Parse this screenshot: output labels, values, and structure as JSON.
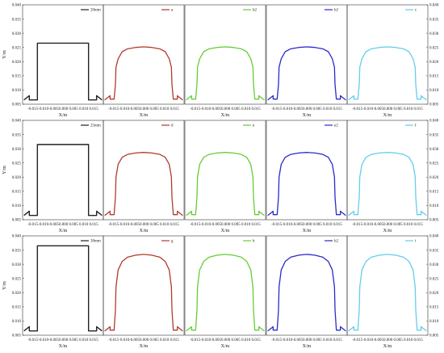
{
  "figure": {
    "rows": [
      {
        "name": "row-20mm",
        "panels": [
          {
            "label": "20mm",
            "color": "#222222",
            "shape": "rect"
          },
          {
            "label": "a",
            "color": "#b03a2e",
            "shape": "bump"
          },
          {
            "label": "b2",
            "color": "#66cc33",
            "shape": "bump"
          },
          {
            "label": "b2",
            "color": "#2a2acc",
            "shape": "bump"
          },
          {
            "label": "c",
            "color": "#66ccee",
            "shape": "bump"
          }
        ]
      },
      {
        "name": "row-25mm",
        "panels": [
          {
            "label": "25mm",
            "color": "#222222",
            "shape": "rect"
          },
          {
            "label": "d",
            "color": "#b03a2e",
            "shape": "bump"
          },
          {
            "label": "e",
            "color": "#66cc33",
            "shape": "bump"
          },
          {
            "label": "e2",
            "color": "#2a2acc",
            "shape": "bump"
          },
          {
            "label": "f",
            "color": "#66ccee",
            "shape": "bump"
          }
        ]
      },
      {
        "name": "row-30mm",
        "panels": [
          {
            "label": "30mm",
            "color": "#222222",
            "shape": "rect"
          },
          {
            "label": "g",
            "color": "#b03a2e",
            "shape": "bump"
          },
          {
            "label": "h",
            "color": "#66cc33",
            "shape": "bump"
          },
          {
            "label": "h2",
            "color": "#2a2acc",
            "shape": "bump"
          },
          {
            "label": "i",
            "color": "#66ccee",
            "shape": "bump"
          }
        ]
      }
    ]
  },
  "chart_data": {
    "type": "line",
    "title": "",
    "xlabel": "X/m",
    "ylabel": "Y/m",
    "xlim": [
      -0.015,
      0.015
    ],
    "ylim": [
      0.005,
      0.04
    ],
    "y_ticks": [
      "0.040",
      "0.035",
      "0.030",
      "0.025",
      "0.020",
      "0.015",
      "0.010",
      "0.005"
    ],
    "x_tick_labels": [
      "-0.015-0.010-0.0050.000 0.005 0.010 0.015",
      "-0.015-0.010-0.0050.000 0.005 0.010 0.015",
      "-0.015-0.010-0.0050.000 0.005 0.010 0.015",
      "-0.015-0.010-0.0050.000 0.005 0.010 0.015",
      "-0.015-0.010-0.0050.000 0.005 0.010 0.015"
    ],
    "profiles": {
      "rect": {
        "20mm": {
          "x": [
            -0.0145,
            -0.0125,
            -0.0125,
            -0.0095,
            -0.0095,
            0.0095,
            0.0095,
            0.0125,
            0.0125,
            0.0145
          ],
          "y": [
            0.0065,
            0.008,
            0.0065,
            0.0065,
            0.0265,
            0.0265,
            0.0065,
            0.0065,
            0.008,
            0.0065
          ]
        },
        "25mm": {
          "x": [
            -0.0145,
            -0.0125,
            -0.0125,
            -0.0095,
            -0.0095,
            0.0095,
            0.0095,
            0.0125,
            0.0125,
            0.0145
          ],
          "y": [
            0.0065,
            0.008,
            0.0065,
            0.0065,
            0.0315,
            0.0315,
            0.0065,
            0.0065,
            0.008,
            0.0065
          ]
        },
        "30mm": {
          "x": [
            -0.0145,
            -0.0125,
            -0.0125,
            -0.0095,
            -0.0095,
            0.0095,
            0.0095,
            0.0125,
            0.0125,
            0.0145
          ],
          "y": [
            0.0065,
            0.008,
            0.0065,
            0.0065,
            0.0365,
            0.0365,
            0.0065,
            0.0065,
            0.008,
            0.0065
          ]
        }
      },
      "bump": {
        "row-20mm": {
          "x": [
            -0.0145,
            -0.0125,
            -0.0125,
            -0.011,
            -0.0105,
            -0.0103,
            -0.0095,
            -0.008,
            -0.006,
            -0.003,
            0.0,
            0.003,
            0.006,
            0.008,
            0.0095,
            0.0103,
            0.0105,
            0.011,
            0.0125,
            0.0125,
            0.0145
          ],
          "y": [
            0.0065,
            0.008,
            0.0068,
            0.0068,
            0.012,
            0.018,
            0.021,
            0.0235,
            0.0245,
            0.025,
            0.0252,
            0.025,
            0.0245,
            0.0235,
            0.021,
            0.018,
            0.012,
            0.0068,
            0.0068,
            0.008,
            0.0065
          ]
        },
        "row-25mm": {
          "x": [
            -0.0145,
            -0.0125,
            -0.0125,
            -0.011,
            -0.0105,
            -0.0103,
            -0.0095,
            -0.008,
            -0.006,
            -0.003,
            0.0,
            0.003,
            0.006,
            0.008,
            0.0095,
            0.0103,
            0.0105,
            0.011,
            0.0125,
            0.0125,
            0.0145
          ],
          "y": [
            0.0065,
            0.008,
            0.0068,
            0.0068,
            0.013,
            0.02,
            0.0245,
            0.027,
            0.028,
            0.0285,
            0.0287,
            0.0285,
            0.028,
            0.027,
            0.0245,
            0.02,
            0.013,
            0.0068,
            0.0068,
            0.008,
            0.0065
          ]
        },
        "row-30mm": {
          "x": [
            -0.0145,
            -0.0125,
            -0.0125,
            -0.011,
            -0.0105,
            -0.0103,
            -0.0095,
            -0.008,
            -0.006,
            -0.003,
            0.0,
            0.003,
            0.006,
            0.008,
            0.0095,
            0.0103,
            0.0105,
            0.011,
            0.0125,
            0.0125,
            0.0145
          ],
          "y": [
            0.0065,
            0.008,
            0.0068,
            0.0068,
            0.014,
            0.022,
            0.028,
            0.031,
            0.0325,
            0.0332,
            0.0335,
            0.0332,
            0.0325,
            0.031,
            0.028,
            0.022,
            0.014,
            0.0068,
            0.0068,
            0.008,
            0.0065
          ]
        }
      }
    }
  }
}
